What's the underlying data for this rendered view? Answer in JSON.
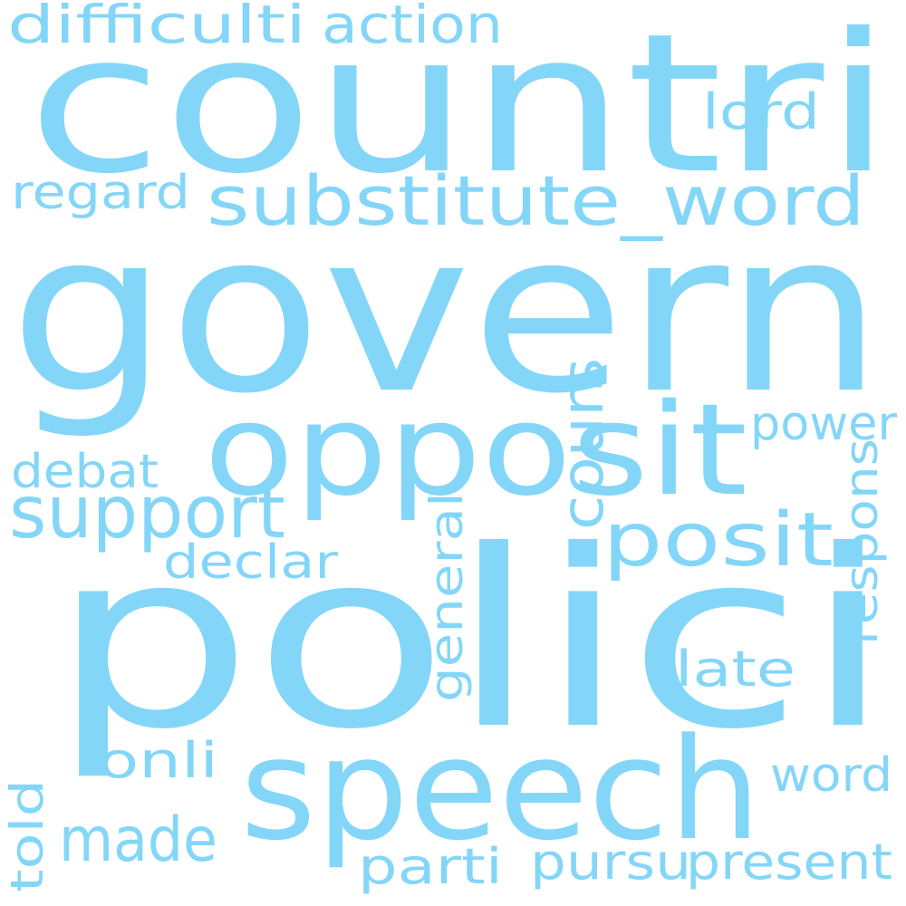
{
  "word_color": "#84d6f8",
  "background_color": "#ffffff",
  "words": [
    {
      "key": "countri",
      "text": "countri"
    },
    {
      "key": "govern",
      "text": "govern"
    },
    {
      "key": "polici",
      "text": "polici"
    },
    {
      "key": "opposit",
      "text": "opposit"
    },
    {
      "key": "speech",
      "text": "speech"
    },
    {
      "key": "substitute-word",
      "text": "substitute_word"
    },
    {
      "key": "support",
      "text": "support"
    },
    {
      "key": "posit",
      "text": "posit"
    },
    {
      "key": "cours",
      "text": "cours"
    },
    {
      "key": "made",
      "text": "made"
    },
    {
      "key": "difficulti",
      "text": "difficulti"
    },
    {
      "key": "action",
      "text": "action"
    },
    {
      "key": "regard",
      "text": "regard"
    },
    {
      "key": "lord",
      "text": "lord"
    },
    {
      "key": "power",
      "text": "power"
    },
    {
      "key": "respons",
      "text": "respons"
    },
    {
      "key": "debat",
      "text": "debat"
    },
    {
      "key": "declar",
      "text": "declar"
    },
    {
      "key": "general",
      "text": "general"
    },
    {
      "key": "late",
      "text": "late"
    },
    {
      "key": "onli",
      "text": "onli"
    },
    {
      "key": "word",
      "text": "word"
    },
    {
      "key": "told",
      "text": "told"
    },
    {
      "key": "parti",
      "text": "parti"
    },
    {
      "key": "pursu",
      "text": "pursu"
    },
    {
      "key": "present",
      "text": "present"
    }
  ]
}
